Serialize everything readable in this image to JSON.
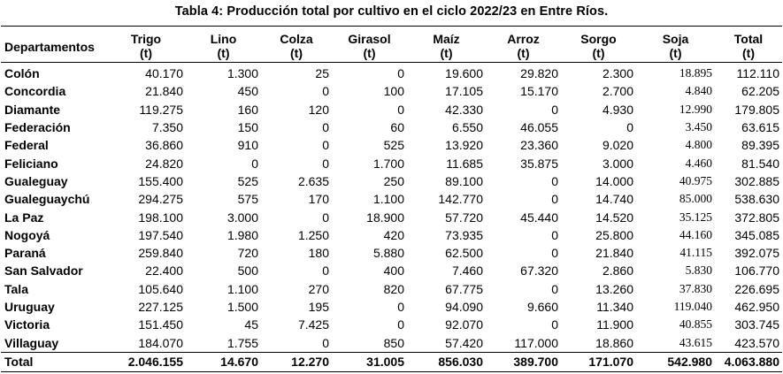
{
  "title": "Tabla 4:  Producción total por cultivo en el ciclo 2022/23 en Entre Ríos.",
  "headers": [
    {
      "name": "Departamentos",
      "unit": ""
    },
    {
      "name": "Trigo",
      "unit": "(t)"
    },
    {
      "name": "Lino",
      "unit": "(t)"
    },
    {
      "name": "Colza",
      "unit": "(t)"
    },
    {
      "name": "Girasol",
      "unit": "(t)"
    },
    {
      "name": "Maíz",
      "unit": "(t)"
    },
    {
      "name": "Arroz",
      "unit": "(t)"
    },
    {
      "name": "Sorgo",
      "unit": "(t)"
    },
    {
      "name": "Soja",
      "unit": "(t)"
    },
    {
      "name": "Total",
      "unit": "(t)"
    }
  ],
  "rows": [
    [
      "Colón",
      "40.170",
      "1.300",
      "25",
      "0",
      "19.600",
      "29.820",
      "2.300",
      "18.895",
      "112.110"
    ],
    [
      "Concordia",
      "21.840",
      "450",
      "0",
      "100",
      "17.105",
      "15.170",
      "2.700",
      "4.840",
      "62.205"
    ],
    [
      "Diamante",
      "119.275",
      "160",
      "120",
      "0",
      "42.330",
      "0",
      "4.930",
      "12.990",
      "179.805"
    ],
    [
      "Federación",
      "7.350",
      "150",
      "0",
      "60",
      "6.550",
      "46.055",
      "0",
      "3.450",
      "63.615"
    ],
    [
      "Federal",
      "36.860",
      "910",
      "0",
      "525",
      "13.920",
      "23.360",
      "9.020",
      "4.800",
      "89.395"
    ],
    [
      "Feliciano",
      "24.820",
      "0",
      "0",
      "1.700",
      "11.685",
      "35.875",
      "3.000",
      "4.460",
      "81.540"
    ],
    [
      "Gualeguay",
      "155.400",
      "525",
      "2.635",
      "250",
      "89.100",
      "0",
      "14.000",
      "40.975",
      "302.885"
    ],
    [
      "Gualeguaychú",
      "294.275",
      "575",
      "170",
      "1.100",
      "142.770",
      "0",
      "14.740",
      "85.000",
      "538.630"
    ],
    [
      "La Paz",
      "198.100",
      "3.000",
      "0",
      "18.900",
      "57.720",
      "45.440",
      "14.520",
      "35.125",
      "372.805"
    ],
    [
      "Nogoyá",
      "197.540",
      "1.980",
      "1.250",
      "420",
      "73.935",
      "0",
      "25.800",
      "44.160",
      "345.085"
    ],
    [
      "Paraná",
      "259.840",
      "720",
      "180",
      "5.880",
      "62.500",
      "0",
      "21.840",
      "41.115",
      "392.075"
    ],
    [
      "San Salvador",
      "22.400",
      "500",
      "0",
      "400",
      "7.460",
      "67.320",
      "2.860",
      "5.830",
      "106.770"
    ],
    [
      "Tala",
      "105.640",
      "1.100",
      "270",
      "820",
      "67.775",
      "0",
      "13.260",
      "37.830",
      "226.695"
    ],
    [
      "Uruguay",
      "227.125",
      "1.500",
      "195",
      "0",
      "94.090",
      "9.660",
      "11.340",
      "119.040",
      "462.950"
    ],
    [
      "Victoria",
      "151.450",
      "45",
      "7.425",
      "0",
      "92.070",
      "0",
      "11.900",
      "40.855",
      "303.745"
    ],
    [
      "Villaguay",
      "184.070",
      "1.755",
      "0",
      "850",
      "57.420",
      "117.000",
      "18.860",
      "43.615",
      "423.570"
    ]
  ],
  "total": [
    "Total",
    "2.046.155",
    "14.670",
    "12.270",
    "31.005",
    "856.030",
    "389.700",
    "171.070",
    "542.980",
    "4.063.880"
  ]
}
